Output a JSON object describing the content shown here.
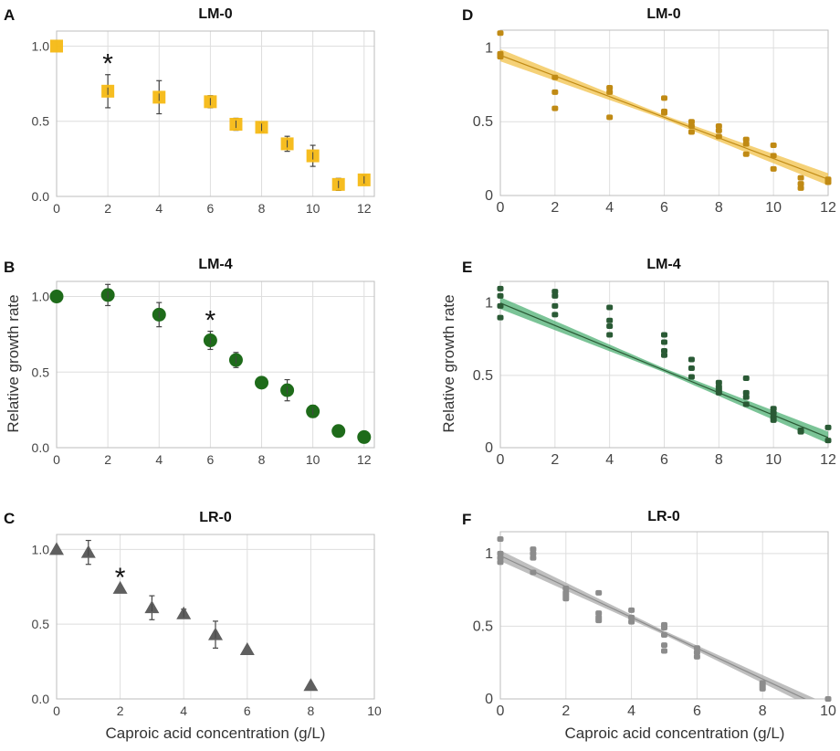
{
  "figure": {
    "ylabel_left": "Relative growth rate",
    "ylabel_right": "Relative growth rate",
    "xlabel_left": "Caproic acid concentration (g/L)",
    "xlabel_right": "Caproic acid concentration (g/L)"
  },
  "chart_data": [
    {
      "panel": "A",
      "title": "LM-0",
      "type": "scatter",
      "marker": "square",
      "color": "#F5B914",
      "xlim": [
        0,
        12.4
      ],
      "ylim": [
        0,
        1.1
      ],
      "xticks": [
        0,
        2,
        4,
        6,
        8,
        10,
        12
      ],
      "yticks": [
        0,
        0.5,
        1.0
      ],
      "ytick_labels": [
        "0.0",
        "0.5",
        "1.0"
      ],
      "x": [
        0,
        2,
        4,
        6,
        7,
        8,
        9,
        10,
        11,
        12
      ],
      "y": [
        1.0,
        0.7,
        0.66,
        0.63,
        0.48,
        0.46,
        0.35,
        0.27,
        0.08,
        0.11
      ],
      "err": [
        0.0,
        0.11,
        0.11,
        0.04,
        0.04,
        0.03,
        0.05,
        0.07,
        0.04,
        0.03
      ],
      "significance": {
        "x": 2,
        "label": "*"
      }
    },
    {
      "panel": "B",
      "title": "LM-4",
      "type": "scatter",
      "marker": "circle",
      "color": "#1E6B1A",
      "xlim": [
        0,
        12.4
      ],
      "ylim": [
        0,
        1.1
      ],
      "xticks": [
        0,
        2,
        4,
        6,
        8,
        10,
        12
      ],
      "yticks": [
        0,
        0.5,
        1.0
      ],
      "ytick_labels": [
        "0.0",
        "0.5",
        "1.0"
      ],
      "x": [
        0,
        2,
        4,
        6,
        7,
        8,
        9,
        10,
        11,
        12
      ],
      "y": [
        1.0,
        1.01,
        0.88,
        0.71,
        0.58,
        0.43,
        0.38,
        0.24,
        0.11,
        0.07
      ],
      "err": [
        0.0,
        0.07,
        0.08,
        0.06,
        0.05,
        0.0,
        0.07,
        0.04,
        0.0,
        0.0
      ],
      "significance": {
        "x": 6,
        "label": "*"
      }
    },
    {
      "panel": "C",
      "title": "LR-0",
      "type": "scatter",
      "marker": "triangle",
      "color": "#5F5F5F",
      "xlim": [
        0,
        10
      ],
      "ylim": [
        0,
        1.1
      ],
      "xticks": [
        0,
        2,
        4,
        6,
        8,
        10
      ],
      "yticks": [
        0,
        0.5,
        1.0
      ],
      "ytick_labels": [
        "0.0",
        "0.5",
        "1.0"
      ],
      "x": [
        0,
        1,
        2,
        3,
        4,
        5,
        6,
        8
      ],
      "y": [
        1.0,
        0.98,
        0.74,
        0.61,
        0.57,
        0.43,
        0.33,
        0.09
      ],
      "err": [
        0.0,
        0.08,
        0.0,
        0.08,
        0.03,
        0.09,
        0.0,
        0.0
      ],
      "significance": {
        "x": 2,
        "label": "*"
      }
    },
    {
      "panel": "D",
      "title": "LM-0",
      "type": "scatter",
      "color": "#C08A14",
      "band_color": "#F2C24A",
      "xlim": [
        0,
        12
      ],
      "ylim": [
        0,
        1.12
      ],
      "xticks": [
        0,
        2,
        4,
        6,
        8,
        10,
        12
      ],
      "yticks": [
        0,
        0.5,
        1
      ],
      "ytick_labels": [
        "0",
        "0.5",
        "1"
      ],
      "fit": {
        "intercept": 0.95,
        "slope": -0.07
      },
      "x": [
        0,
        0,
        0,
        2,
        2,
        2,
        4,
        4,
        4,
        6,
        6,
        6,
        7,
        7,
        7,
        8,
        8,
        8,
        9,
        9,
        9,
        10,
        10,
        10,
        11,
        11,
        11,
        12,
        12
      ],
      "y": [
        1.1,
        0.96,
        0.94,
        0.8,
        0.7,
        0.59,
        0.73,
        0.7,
        0.53,
        0.66,
        0.57,
        0.56,
        0.5,
        0.47,
        0.43,
        0.47,
        0.44,
        0.4,
        0.38,
        0.35,
        0.28,
        0.34,
        0.27,
        0.18,
        0.12,
        0.08,
        0.05,
        0.11,
        0.09
      ]
    },
    {
      "panel": "E",
      "title": "LM-4",
      "type": "scatter",
      "color": "#2A5A35",
      "band_color": "#4FB074",
      "xlim": [
        0,
        12
      ],
      "ylim": [
        0,
        1.15
      ],
      "xticks": [
        0,
        2,
        4,
        6,
        8,
        10,
        12
      ],
      "yticks": [
        0,
        0.5,
        1
      ],
      "ytick_labels": [
        "0",
        "0.5",
        "1"
      ],
      "fit": {
        "intercept": 1.0,
        "slope": -0.0775
      },
      "x": [
        0,
        0,
        0,
        0,
        2,
        2,
        2,
        2,
        4,
        4,
        4,
        4,
        6,
        6,
        6,
        6,
        7,
        7,
        7,
        8,
        8,
        8,
        8,
        9,
        9,
        9,
        9,
        10,
        10,
        10,
        10,
        11,
        11,
        12,
        12
      ],
      "y": [
        1.1,
        1.05,
        0.98,
        0.9,
        1.08,
        1.05,
        0.98,
        0.92,
        0.97,
        0.88,
        0.84,
        0.78,
        0.78,
        0.73,
        0.67,
        0.64,
        0.61,
        0.55,
        0.49,
        0.45,
        0.42,
        0.4,
        0.38,
        0.48,
        0.38,
        0.35,
        0.3,
        0.27,
        0.24,
        0.21,
        0.19,
        0.12,
        0.11,
        0.14,
        0.05
      ]
    },
    {
      "panel": "F",
      "title": "LR-0",
      "type": "scatter",
      "color": "#8C8C8C",
      "band_color": "#AAAAAA",
      "xlim": [
        0,
        10
      ],
      "ylim": [
        0,
        1.15
      ],
      "xticks": [
        0,
        2,
        4,
        6,
        8,
        10
      ],
      "yticks": [
        0,
        0.5,
        1
      ],
      "ytick_labels": [
        "0",
        "0.5",
        "1"
      ],
      "fit": {
        "intercept": 0.985,
        "slope": -0.106
      },
      "x": [
        0,
        0,
        0,
        0,
        1,
        1,
        1,
        1,
        2,
        2,
        2,
        2,
        3,
        3,
        3,
        3,
        4,
        4,
        4,
        5,
        5,
        5,
        5,
        5,
        6,
        6,
        6,
        8,
        8,
        8,
        10
      ],
      "y": [
        1.1,
        1.0,
        0.97,
        0.94,
        1.03,
        1.0,
        0.97,
        0.87,
        0.76,
        0.73,
        0.71,
        0.69,
        0.73,
        0.59,
        0.56,
        0.54,
        0.61,
        0.56,
        0.53,
        0.51,
        0.49,
        0.44,
        0.37,
        0.33,
        0.35,
        0.32,
        0.29,
        0.11,
        0.09,
        0.07,
        0.0
      ]
    }
  ]
}
